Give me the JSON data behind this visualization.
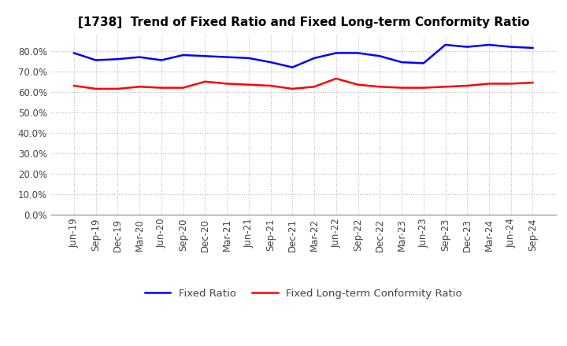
{
  "title": "[1738]  Trend of Fixed Ratio and Fixed Long-term Conformity Ratio",
  "x_labels": [
    "Jun-19",
    "Sep-19",
    "Dec-19",
    "Mar-20",
    "Jun-20",
    "Sep-20",
    "Dec-20",
    "Mar-21",
    "Jun-21",
    "Sep-21",
    "Dec-21",
    "Mar-22",
    "Jun-22",
    "Sep-22",
    "Dec-22",
    "Mar-23",
    "Jun-23",
    "Sep-23",
    "Dec-23",
    "Mar-24",
    "Jun-24",
    "Sep-24"
  ],
  "fixed_ratio": [
    79.0,
    75.5,
    76.0,
    77.0,
    75.5,
    78.0,
    77.5,
    77.0,
    76.5,
    74.5,
    72.0,
    76.5,
    79.0,
    79.0,
    77.5,
    74.5,
    74.0,
    83.0,
    82.0,
    83.0,
    82.0,
    81.5
  ],
  "fixed_lt_ratio": [
    63.0,
    61.5,
    61.5,
    62.5,
    62.0,
    62.0,
    65.0,
    64.0,
    63.5,
    63.0,
    61.5,
    62.5,
    66.5,
    63.5,
    62.5,
    62.0,
    62.0,
    62.5,
    63.0,
    64.0,
    64.0,
    64.5
  ],
  "fixed_ratio_color": "#0000FF",
  "fixed_lt_ratio_color": "#FF0000",
  "ylim": [
    0,
    88
  ],
  "yticks": [
    0,
    10,
    20,
    30,
    40,
    50,
    60,
    70,
    80
  ],
  "background_color": "#FFFFFF",
  "grid_color": "#BBBBBB",
  "legend_fixed": "Fixed Ratio",
  "legend_fixed_lt": "Fixed Long-term Conformity Ratio",
  "title_fontsize": 11,
  "axis_fontsize": 8.5,
  "legend_fontsize": 9.5,
  "line_width": 1.8
}
